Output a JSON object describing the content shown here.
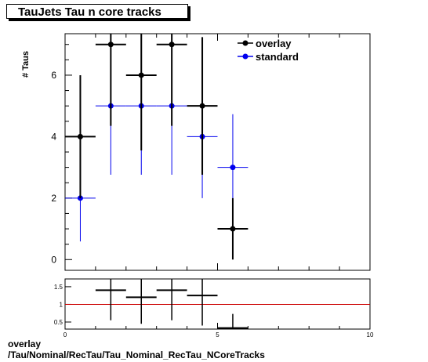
{
  "title": "TauJets Tau n core tracks",
  "footer": {
    "line1": "overlay",
    "line2": "/Tau/Nominal/RecTau/Tau_Nominal_RecTau_NCoreTracks"
  },
  "colors": {
    "overlay": "#000000",
    "standard": "#0000ee",
    "reference_line": "#cc0000"
  },
  "chart_data": [
    {
      "type": "scatter",
      "ylabel": "# Taus",
      "xlabel": "",
      "xlim": [
        0,
        10
      ],
      "ylim": [
        -0.35,
        7.35
      ],
      "yticks": [
        0,
        2,
        4,
        6
      ],
      "legend_position": "top-right",
      "series": [
        {
          "name": "overlay",
          "x": [
            0.5,
            1.5,
            2.5,
            3.5,
            4.5,
            5.5
          ],
          "y": [
            4,
            7,
            6,
            7,
            5,
            1
          ],
          "y_err": [
            2.0,
            2.65,
            2.45,
            2.65,
            2.24,
            1.0
          ],
          "x_half_width": 0.5
        },
        {
          "name": "standard",
          "x": [
            0.5,
            1.5,
            2.5,
            3.5,
            4.5,
            5.5
          ],
          "y": [
            2,
            5,
            5,
            5,
            4,
            3
          ],
          "y_err": [
            1.41,
            2.24,
            2.24,
            2.24,
            2.0,
            1.73
          ],
          "x_half_width": 0.5
        }
      ]
    },
    {
      "type": "scatter",
      "xlim": [
        0,
        10
      ],
      "ylim": [
        0.3,
        1.72
      ],
      "yticks": [
        "0.5",
        "1",
        "1.5"
      ],
      "xticks": [
        "0",
        "5",
        "10"
      ],
      "reference_y": 1,
      "series": [
        {
          "name": "overlay/standard",
          "x": [
            1.5,
            2.5,
            3.5,
            4.5,
            5.5
          ],
          "y": [
            1.4,
            1.2,
            1.4,
            1.25,
            0.33
          ],
          "y_err": [
            0.85,
            0.75,
            0.85,
            0.85,
            0.4
          ],
          "x_half_width": 0.5
        }
      ]
    }
  ]
}
